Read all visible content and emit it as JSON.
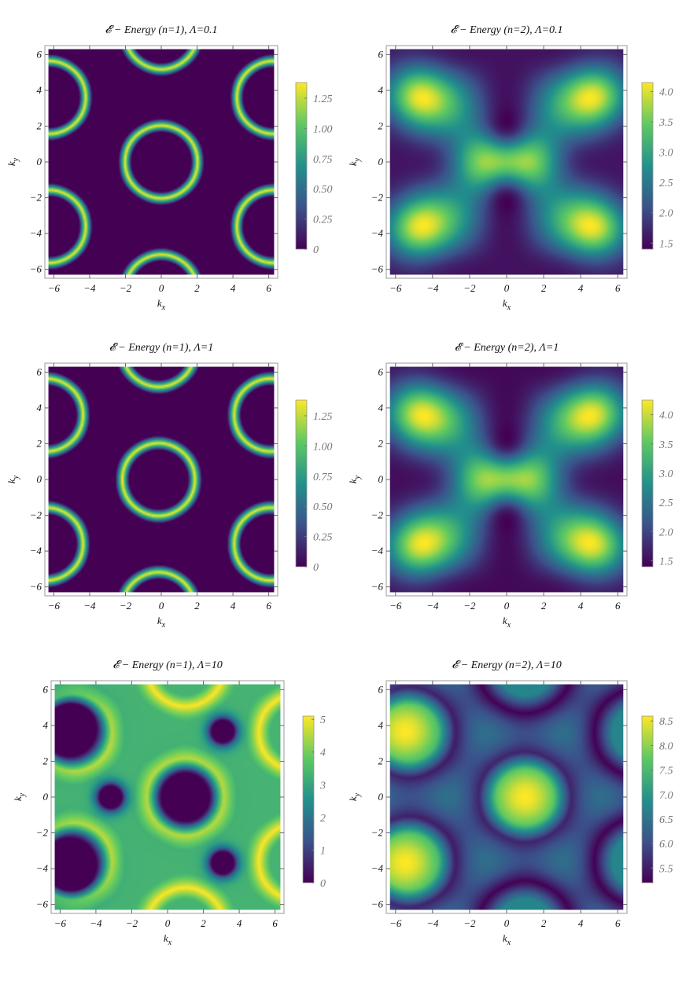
{
  "colormap": [
    "#440154",
    "#3b528b",
    "#21918c",
    "#5ec962",
    "#fde725"
  ],
  "frame_color": "#999999",
  "chart_data": [
    {
      "type": "heatmap",
      "title": "𝓔 − Energy (n=1), Λ=0.1",
      "xlabel": "k_x",
      "ylabel": "k_y",
      "xlim": [
        -6.5,
        6.5
      ],
      "ylim": [
        -6.5,
        6.5
      ],
      "xticks": [
        -6,
        -4,
        -2,
        0,
        2,
        4,
        6
      ],
      "yticks": [
        -6,
        -4,
        -2,
        0,
        2,
        4,
        6
      ],
      "xtick_labels": [
        "−6",
        "−4",
        "−2",
        "0",
        "2",
        "4",
        "6"
      ],
      "ytick_labels": [
        "−6",
        "−4",
        "−2",
        "0",
        "2",
        "4",
        "6"
      ],
      "colorbar": {
        "min": 0,
        "max": 1.38,
        "ticks": [
          0,
          0.25,
          0.5,
          0.75,
          1.0,
          1.25
        ],
        "labels": [
          "0",
          "0.25",
          "0.50",
          "0.75",
          "1.00",
          "1.25"
        ]
      },
      "legend": "colorbar-right",
      "grid": false
    },
    {
      "type": "heatmap",
      "title": "𝓔 − Energy (n=2), Λ=0.1",
      "xlabel": "k_x",
      "ylabel": "k_y",
      "xlim": [
        -6.5,
        6.5
      ],
      "ylim": [
        -6.5,
        6.5
      ],
      "xticks": [
        -6,
        -4,
        -2,
        0,
        2,
        4,
        6
      ],
      "yticks": [
        -6,
        -4,
        -2,
        0,
        2,
        4,
        6
      ],
      "xtick_labels": [
        "−6",
        "−4",
        "−2",
        "0",
        "2",
        "4",
        "6"
      ],
      "ytick_labels": [
        "−6",
        "−4",
        "−2",
        "0",
        "2",
        "4",
        "6"
      ],
      "colorbar": {
        "min": 1.4,
        "max": 4.15,
        "ticks": [
          1.5,
          2.0,
          2.5,
          3.0,
          3.5,
          4.0
        ],
        "labels": [
          "1.5",
          "2.0",
          "2.5",
          "3.0",
          "3.5",
          "4.0"
        ]
      },
      "legend": "colorbar-right",
      "grid": false
    },
    {
      "type": "heatmap",
      "title": "𝓔 − Energy (n=1), Λ=1",
      "xlabel": "k_x",
      "ylabel": "k_y",
      "xlim": [
        -6.5,
        6.5
      ],
      "ylim": [
        -6.5,
        6.5
      ],
      "xticks": [
        -6,
        -4,
        -2,
        0,
        2,
        4,
        6
      ],
      "yticks": [
        -6,
        -4,
        -2,
        0,
        2,
        4,
        6
      ],
      "xtick_labels": [
        "−6",
        "−4",
        "−2",
        "0",
        "2",
        "4",
        "6"
      ],
      "ytick_labels": [
        "−6",
        "−4",
        "−2",
        "0",
        "2",
        "4",
        "6"
      ],
      "colorbar": {
        "min": 0,
        "max": 1.38,
        "ticks": [
          0,
          0.25,
          0.5,
          0.75,
          1.0,
          1.25
        ],
        "labels": [
          "0",
          "0.25",
          "0.50",
          "0.75",
          "1.00",
          "1.25"
        ]
      },
      "legend": "colorbar-right",
      "grid": false
    },
    {
      "type": "heatmap",
      "title": "𝓔 − Energy (n=2), Λ=1",
      "xlabel": "k_x",
      "ylabel": "k_y",
      "xlim": [
        -6.5,
        6.5
      ],
      "ylim": [
        -6.5,
        6.5
      ],
      "xticks": [
        -6,
        -4,
        -2,
        0,
        2,
        4,
        6
      ],
      "yticks": [
        -6,
        -4,
        -2,
        0,
        2,
        4,
        6
      ],
      "xtick_labels": [
        "−6",
        "−4",
        "−2",
        "0",
        "2",
        "4",
        "6"
      ],
      "ytick_labels": [
        "−6",
        "−4",
        "−2",
        "0",
        "2",
        "4",
        "6"
      ],
      "colorbar": {
        "min": 1.4,
        "max": 4.25,
        "ticks": [
          1.5,
          2.0,
          2.5,
          3.0,
          3.5,
          4.0
        ],
        "labels": [
          "1.5",
          "2.0",
          "2.5",
          "3.0",
          "3.5",
          "4.0"
        ]
      },
      "legend": "colorbar-right",
      "grid": false
    },
    {
      "type": "heatmap",
      "title": "𝓔 − Energy (n=1), Λ=10",
      "xlabel": "k_x",
      "ylabel": "k_y",
      "xlim": [
        -6.5,
        6.5
      ],
      "ylim": [
        -6.5,
        6.5
      ],
      "xticks": [
        -6,
        -4,
        -2,
        0,
        2,
        4,
        6
      ],
      "yticks": [
        -6,
        -4,
        -2,
        0,
        2,
        4,
        6
      ],
      "xtick_labels": [
        "−6",
        "−4",
        "−2",
        "0",
        "2",
        "4",
        "6"
      ],
      "ytick_labels": [
        "−6",
        "−4",
        "−2",
        "0",
        "2",
        "4",
        "6"
      ],
      "colorbar": {
        "min": 0,
        "max": 5.1,
        "ticks": [
          0,
          1,
          2,
          3,
          4,
          5
        ],
        "labels": [
          "0",
          "1",
          "2",
          "3",
          "4",
          "5"
        ]
      },
      "legend": "colorbar-right",
      "grid": false
    },
    {
      "type": "heatmap",
      "title": "𝓔 − Energy (n=2), Λ=10",
      "xlabel": "k_x",
      "ylabel": "k_y",
      "xlim": [
        -6.5,
        6.5
      ],
      "ylim": [
        -6.5,
        6.5
      ],
      "xticks": [
        -6,
        -4,
        -2,
        0,
        2,
        4,
        6
      ],
      "yticks": [
        -6,
        -4,
        -2,
        0,
        2,
        4,
        6
      ],
      "xtick_labels": [
        "−6",
        "−4",
        "−2",
        "0",
        "2",
        "4",
        "6"
      ],
      "ytick_labels": [
        "−6",
        "−4",
        "−2",
        "0",
        "2",
        "4",
        "6"
      ],
      "colorbar": {
        "min": 5.2,
        "max": 8.6,
        "ticks": [
          5.5,
          6.0,
          6.5,
          7.0,
          7.5,
          8.0,
          8.5
        ],
        "labels": [
          "5.5",
          "6.0",
          "6.5",
          "7.0",
          "7.5",
          "8.0",
          "8.5"
        ]
      },
      "legend": "colorbar-right",
      "grid": false
    }
  ]
}
